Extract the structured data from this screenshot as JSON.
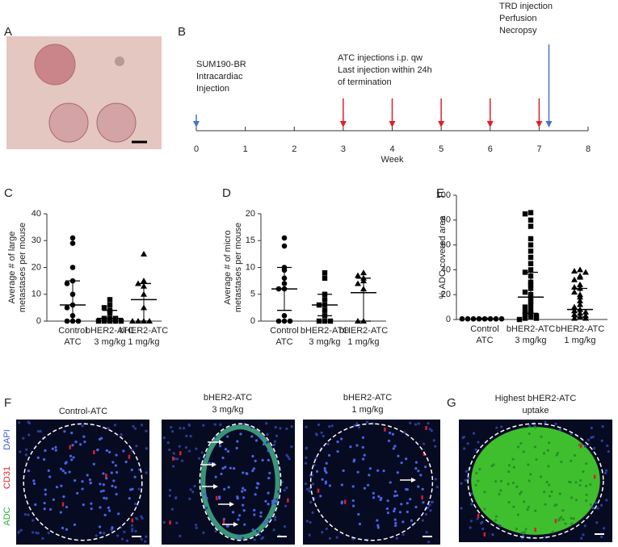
{
  "panel_labels": [
    "A",
    "B",
    "C",
    "D",
    "E",
    "F",
    "G"
  ],
  "timeline": {
    "xlim": [
      0,
      8
    ],
    "xticks": [
      0,
      1,
      2,
      3,
      4,
      5,
      6,
      7,
      8
    ],
    "xlabel": "Week",
    "arrows": [
      {
        "week": 0,
        "color": "#4a72c4"
      },
      {
        "week": 3,
        "color": "#e0202a"
      },
      {
        "week": 4,
        "color": "#e0202a"
      },
      {
        "week": 5,
        "color": "#e0202a"
      },
      {
        "week": 6,
        "color": "#e0202a"
      },
      {
        "week": 7,
        "color": "#e0202a"
      },
      {
        "week": 7.2,
        "color": "#4a72c4"
      }
    ],
    "notes": [
      [
        "SUM190-BR",
        "Intracardiac",
        "Injection"
      ],
      [
        "ATC injections i.p. qw",
        "Last injection within 24h",
        "of termination"
      ],
      [
        "TRD injection",
        "Perfusion",
        "Necropsy"
      ]
    ]
  },
  "chart_data": [
    {
      "type": "scatter",
      "ylabel": [
        "Average # of large",
        "metastases per mouse"
      ],
      "ylim": [
        0,
        40
      ],
      "yticks": [
        0,
        10,
        20,
        30,
        40
      ],
      "color": "#000000",
      "categories": [
        [
          "Control",
          "ATC"
        ],
        [
          "bHER2-ATC",
          "3 mg/kg"
        ],
        [
          "bHER2-ATC",
          "1 mg/kg"
        ]
      ],
      "groups": [
        {
          "marker": "circle",
          "values": [
            31,
            29,
            20,
            15,
            14,
            10,
            6,
            5,
            2,
            0,
            0,
            0
          ],
          "mid": 6,
          "low": 0,
          "high": 15
        },
        {
          "marker": "square",
          "values": [
            8,
            6,
            5,
            4,
            3,
            1,
            1,
            1,
            0,
            0,
            0,
            0,
            0
          ],
          "mid": 1,
          "low": 0,
          "high": 4
        },
        {
          "marker": "triangle",
          "values": [
            25,
            15,
            14,
            13,
            10,
            5,
            0,
            0,
            0,
            0
          ],
          "mid": 8,
          "low": 0,
          "high": 14
        }
      ]
    },
    {
      "type": "scatter",
      "ylabel": [
        "Average # of micro",
        "metastases per mouse"
      ],
      "ylim": [
        0,
        20
      ],
      "yticks": [
        0,
        5,
        10,
        15,
        20
      ],
      "color": "#000000",
      "categories": [
        [
          "Control",
          "ATC"
        ],
        [
          "bHER2-ATC",
          "3 mg/kg"
        ],
        [
          "bHER2-ATC",
          "1 mg/kg"
        ]
      ],
      "groups": [
        {
          "marker": "circle",
          "values": [
            15.5,
            14,
            10,
            9.5,
            8,
            7,
            6,
            6,
            1,
            0,
            0,
            0
          ],
          "mid": 6,
          "low": 2,
          "high": 10
        },
        {
          "marker": "square",
          "values": [
            9,
            8,
            5,
            4,
            3,
            3,
            2,
            1,
            0,
            0,
            0
          ],
          "mid": 3,
          "low": 1,
          "high": 5
        },
        {
          "marker": "triangle",
          "values": [
            9,
            8.5,
            8,
            7.5,
            7,
            6,
            0,
            0
          ],
          "mid": 5.3,
          "low": 0,
          "high": 8
        }
      ]
    },
    {
      "type": "scatter",
      "ylabel": [
        "% ADC-covered area"
      ],
      "ylim": [
        0,
        100
      ],
      "yticks": [
        0,
        20,
        40,
        60,
        80,
        100
      ],
      "color": "#000000",
      "categories": [
        [
          "Control",
          "ATC"
        ],
        [
          "bHER2-ATC",
          "3 mg/kg"
        ],
        [
          "bHER2-ATC",
          "1 mg/kg"
        ]
      ],
      "groups": [
        {
          "marker": "circle",
          "values": [
            0.5,
            0.5,
            0.5,
            0.5,
            0.5,
            0.5,
            0.5,
            0.5
          ],
          "mid": 0.5,
          "low": 0,
          "high": 1
        },
        {
          "marker": "square",
          "values": [
            86,
            85,
            80,
            75,
            65,
            60,
            55,
            50,
            45,
            40,
            38,
            35,
            30,
            28,
            25,
            22,
            20,
            18,
            15,
            12,
            10,
            8,
            6,
            5,
            4,
            3,
            2,
            1,
            1,
            0
          ],
          "mid": 18,
          "low": 5,
          "high": 38
        },
        {
          "marker": "triangle",
          "values": [
            40,
            39,
            38,
            35,
            34,
            32,
            28,
            26,
            25,
            22,
            20,
            18,
            15,
            12,
            10,
            8,
            7,
            6,
            5,
            4,
            3,
            2,
            1,
            1
          ],
          "mid": 8,
          "low": 2,
          "high": 25
        }
      ]
    }
  ],
  "micrographs": {
    "channels": [
      "DAPI",
      "CD31",
      "ADC"
    ],
    "titles": [
      [
        "Control-ATC"
      ],
      [
        "bHER2-ATC",
        "3 mg/kg"
      ],
      [
        "bHER2-ATC",
        "1 mg/kg"
      ],
      [
        "Highest bHER2-ATC",
        "uptake"
      ]
    ]
  }
}
